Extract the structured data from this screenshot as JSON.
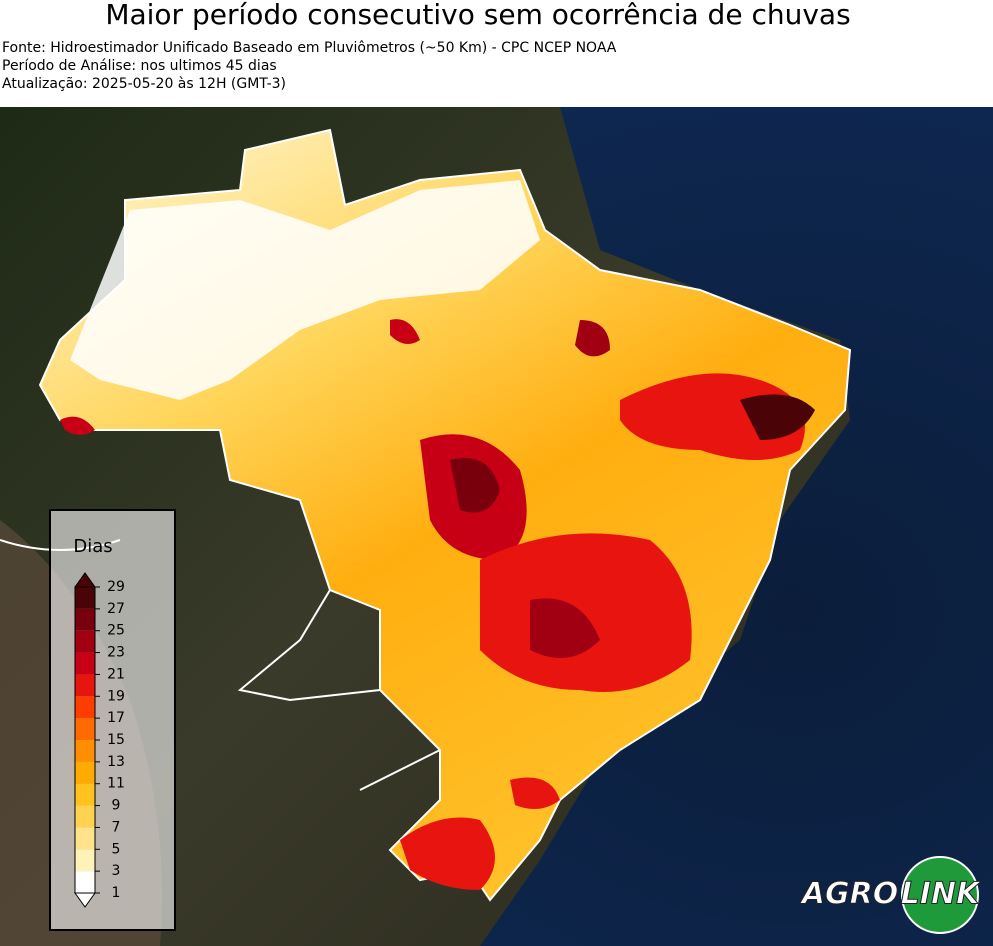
{
  "header": {
    "title": "Maior período consecutivo sem ocorrência de chuvas",
    "lines": [
      "Fonte: Hidroestimador Unificado Baseado em Pluviômetros (~50 Km) - CPC NCEP NOAA",
      "Período de Análise: nos ultimos 45 dias",
      "Atualização: 2025-05-20 às 12H (GMT-3)"
    ]
  },
  "legend": {
    "title": "Dias",
    "ticks": [
      1,
      3,
      5,
      7,
      9,
      11,
      13,
      15,
      17,
      19,
      21,
      23,
      25,
      27,
      29
    ],
    "colors": [
      "#ffffff",
      "#fff2b8",
      "#ffe38a",
      "#ffd34f",
      "#ffc21f",
      "#ffaa00",
      "#ff8f00",
      "#ff6b00",
      "#ff3d00",
      "#e8140f",
      "#c70016",
      "#a10012",
      "#78000c",
      "#4a0306"
    ]
  },
  "logo": {
    "texts": [
      "AGRO",
      "LINK"
    ]
  }
}
